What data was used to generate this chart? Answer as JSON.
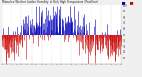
{
  "title": "Milwaukee Weather Outdoor Humidity  At Daily High  Temperature  (Past Year)",
  "background_color": "#f0f0f0",
  "plot_bg": "#ffffff",
  "bar_color_above": "#0000bb",
  "bar_color_below": "#cc0000",
  "legend_blue": "#0000bb",
  "legend_red": "#cc0000",
  "reference_line": 50,
  "ylim": [
    0,
    100
  ],
  "ylabel_ticks": [
    10,
    20,
    30,
    40,
    50,
    60,
    70,
    80,
    90,
    100
  ],
  "ylabel_labels": [
    "10",
    "20",
    "30",
    "40",
    "50",
    "60",
    "70",
    "80",
    "90",
    "100"
  ],
  "n_days": 365,
  "seed": 42,
  "n_gridlines": 13
}
